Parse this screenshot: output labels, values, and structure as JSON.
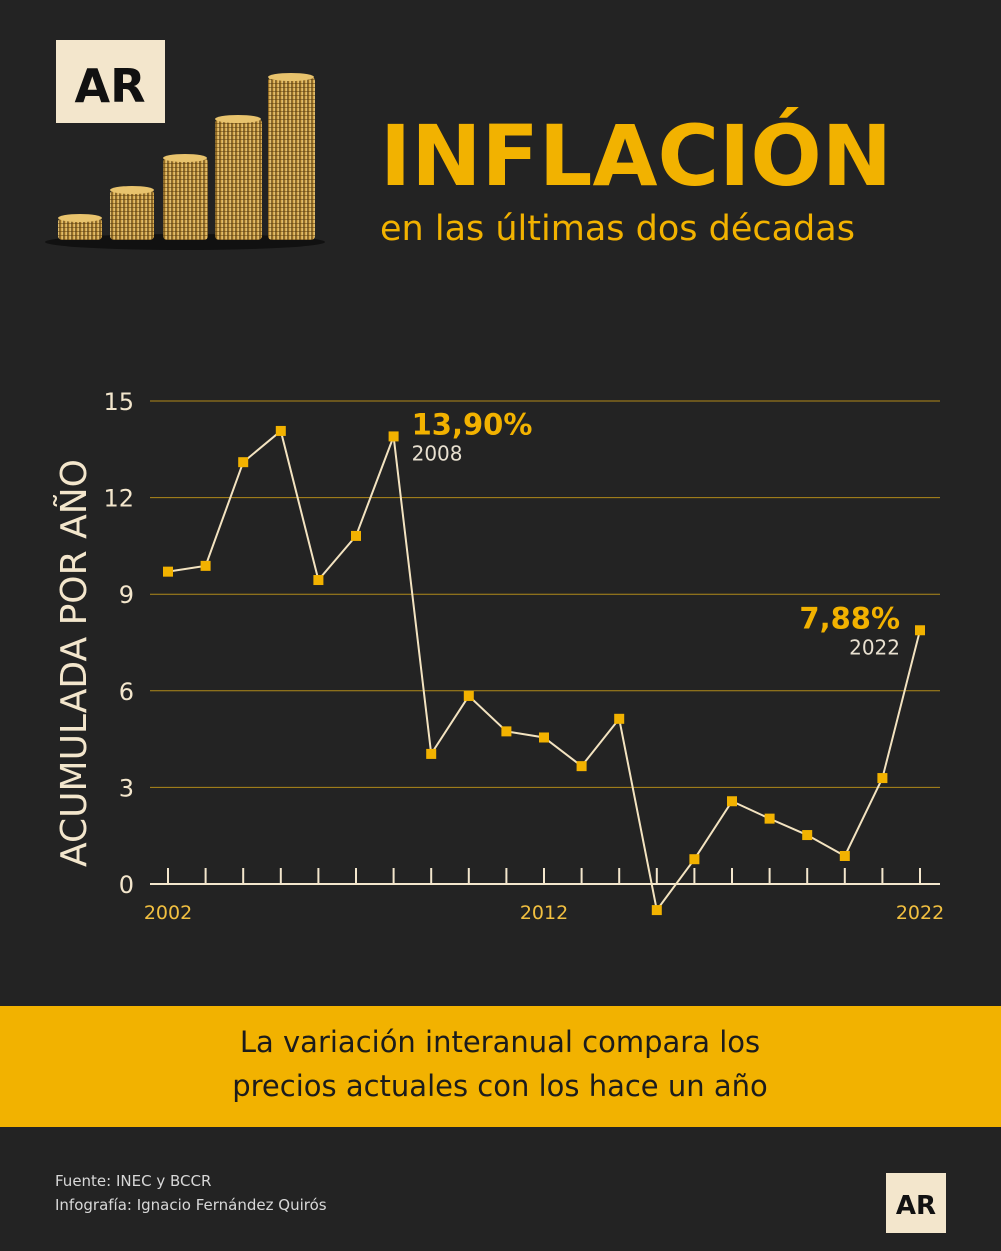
{
  "logo": "AR",
  "chart_data": {
    "type": "line",
    "title": "INFLACIÓN",
    "subtitle": "en las últimas dos décadas",
    "y_label": "ACUMULADA POR AÑO",
    "x": [
      2002,
      2003,
      2004,
      2005,
      2006,
      2007,
      2008,
      2009,
      2010,
      2011,
      2012,
      2013,
      2014,
      2015,
      2016,
      2017,
      2018,
      2019,
      2020,
      2021,
      2022
    ],
    "values": [
      9.7,
      9.88,
      13.1,
      14.07,
      9.44,
      10.81,
      13.9,
      4.04,
      5.84,
      4.74,
      4.55,
      3.66,
      5.13,
      -0.81,
      0.77,
      2.57,
      2.03,
      1.52,
      0.87,
      3.29,
      7.88
    ],
    "line_color": "#f3e3c0",
    "marker_color": "#f2b200",
    "xlim": [
      2002,
      2022
    ],
    "xticks": [
      2002,
      2012,
      2022
    ],
    "ylim": [
      0,
      15
    ],
    "yticks": [
      0,
      3,
      6,
      9,
      12,
      15
    ],
    "grid": true,
    "annotations": [
      {
        "x": 2008,
        "value": 13.9,
        "value_label": "13,90%"
      },
      {
        "x": 2022,
        "value": 7.88,
        "value_label": "7,88%"
      }
    ]
  },
  "note": [
    "La variación interanual compara los",
    "precios actuales con los hace un año"
  ],
  "footer": [
    "Fuente: INEC y BCCR",
    "Infografía: Ignacio Fernández Quirós"
  ]
}
